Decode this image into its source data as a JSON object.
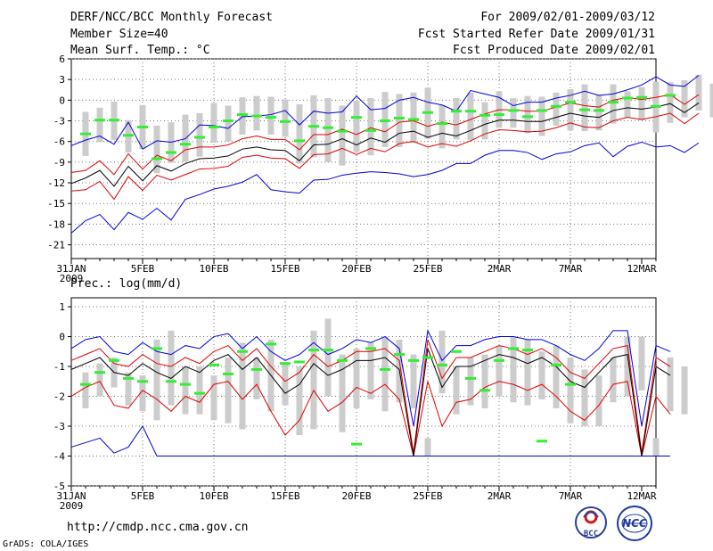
{
  "header": {
    "title": "DERF/NCC/BCC Monthly Forecast",
    "member_size": "Member Size=40",
    "variable": "Mean Surf. Temp.: °C",
    "period": "For 2009/02/01-2009/03/12",
    "refer_date": "Fcst Started Refer Date 2009/01/31",
    "produced_date": "Fcst Produced Date 2009/02/01"
  },
  "footer": {
    "url": "http://cmdp.ncc.cma.gov.cn",
    "credit": "GrADS: COLA/IGES",
    "logo_bcc": "BCC",
    "logo_ncc": "NCC"
  },
  "colors": {
    "mean": "#000000",
    "spread": "#e00000",
    "extreme": "#0000e0",
    "box": "#cccccc",
    "median": "#33ee33"
  },
  "chart_data": [
    {
      "type": "line",
      "title": "Mean Surf. Temp.: °C",
      "ylim": [
        -23,
        6
      ],
      "yticks": [
        "6",
        "3",
        "0",
        "-3",
        "-6",
        "-9",
        "-12",
        "-15",
        "-18",
        "-21"
      ],
      "xtick_labels": [
        "31JAN\n2009",
        "5FEB",
        "10FEB",
        "15FEB",
        "20FEB",
        "25FEB",
        "2MAR",
        "7MAR",
        "12MAR"
      ],
      "series": [
        {
          "name": "mean",
          "values": [
            -12.1,
            -11.3,
            -10.2,
            -12.5,
            -9.6,
            -11.7,
            -9.5,
            -10.3,
            -9.2,
            -8.5,
            -8.4,
            -8.1,
            -7.1,
            -6.8,
            -7.2,
            -7.3,
            -8.8,
            -6.5,
            -6.4,
            -5.6,
            -6.5,
            -5.5,
            -6.1,
            -4.8,
            -4.5,
            -5.4,
            -4.8,
            -5.2,
            -4.4,
            -3.5,
            -2.9,
            -2.9,
            -3.1,
            -3.1,
            -2.5,
            -1.9,
            -2.3,
            -2.5,
            -1.5,
            -1.1,
            -1.3,
            -1.0,
            -0.5,
            -1.8,
            -0.4
          ]
        },
        {
          "name": "upper1",
          "values": [
            -10.5,
            -10.2,
            -8.8,
            -10.8,
            -7.8,
            -10.0,
            -8.0,
            -8.8,
            -7.2,
            -6.8,
            -6.8,
            -6.5,
            -5.6,
            -5.2,
            -5.7,
            -5.7,
            -7.2,
            -5.0,
            -5.0,
            -4.2,
            -5.0,
            -4.0,
            -4.6,
            -3.2,
            -3.0,
            -3.8,
            -3.2,
            -3.6,
            -2.8,
            -2.0,
            -1.4,
            -1.4,
            -1.6,
            -1.6,
            -1.0,
            -0.4,
            -0.8,
            -1.0,
            0.0,
            0.4,
            0.1,
            0.4,
            0.8,
            -0.6,
            0.8
          ]
        },
        {
          "name": "lower1",
          "values": [
            -13.2,
            -13.0,
            -11.8,
            -14.4,
            -11.1,
            -13.1,
            -10.9,
            -11.6,
            -10.8,
            -10.0,
            -9.9,
            -9.6,
            -8.3,
            -8.0,
            -8.4,
            -8.5,
            -9.9,
            -7.9,
            -7.8,
            -7.0,
            -7.9,
            -7.0,
            -7.5,
            -6.3,
            -6.0,
            -6.8,
            -6.3,
            -6.7,
            -5.9,
            -4.9,
            -4.3,
            -4.4,
            -4.6,
            -4.5,
            -4.0,
            -3.3,
            -3.9,
            -4.0,
            -3.0,
            -2.5,
            -2.8,
            -2.4,
            -1.9,
            -3.4,
            -1.9
          ]
        },
        {
          "name": "max",
          "values": [
            -6.6,
            -5.8,
            -5.2,
            -6.4,
            -3.2,
            -7.1,
            -5.9,
            -6.1,
            -5.6,
            -3.6,
            -3.7,
            -4.1,
            -2.4,
            -2.3,
            -2.1,
            -1.5,
            -3.6,
            -1.6,
            -1.9,
            -1.7,
            0.6,
            -1.4,
            -1.2,
            0.0,
            0.4,
            -0.3,
            -0.7,
            -1.6,
            1.4,
            0.9,
            0.4,
            -0.8,
            -0.3,
            -0.3,
            0.3,
            0.7,
            1.3,
            0.7,
            0.9,
            1.5,
            2.2,
            3.4,
            2.2,
            2.0,
            3.6
          ]
        },
        {
          "name": "min",
          "values": [
            -19.3,
            -17.5,
            -16.6,
            -18.8,
            -16.3,
            -17.3,
            -15.7,
            -17.4,
            -14.4,
            -13.7,
            -12.9,
            -12.5,
            -11.9,
            -10.8,
            -13.0,
            -13.3,
            -13.5,
            -11.6,
            -11.5,
            -10.9,
            -10.6,
            -10.4,
            -10.5,
            -10.7,
            -11.1,
            -10.8,
            -10.2,
            -9.2,
            -9.2,
            -8.0,
            -7.3,
            -7.3,
            -7.6,
            -8.6,
            -7.8,
            -7.5,
            -6.6,
            -6.2,
            -8.2,
            -6.7,
            -6.1,
            -6.8,
            -6.6,
            -7.6,
            -6.2
          ]
        },
        {
          "name": "median",
          "values": [
            -4.9,
            -2.9,
            -2.9,
            -5.1,
            -3.9,
            -8.5,
            -7.6,
            -6.4,
            -5.4,
            -3.9,
            -3.0,
            -2.1,
            -2.3,
            -2.5,
            -3.1,
            -5.9,
            -3.8,
            -4.0,
            -4.5,
            -2.5,
            -4.4,
            -3.0,
            -2.6,
            -2.8,
            -1.8,
            -3.4,
            -1.6,
            -1.6,
            -2.2,
            -2.1,
            -1.5,
            -2.4,
            -1.5,
            -0.9,
            -0.3,
            -1.4,
            -1.5,
            -0.3,
            0.3,
            0.4,
            -0.9,
            0.7
          ]
        },
        {
          "name": "box_top",
          "values": [
            -1.7,
            -1.1,
            -0.2,
            -2.9,
            -0.7,
            -3.7,
            -3.2,
            -2.1,
            -1.9,
            -0.4,
            -0.8,
            0.4,
            0.6,
            0.5,
            0.1,
            -0.6,
            0.7,
            0.3,
            -0.8,
            -0.1,
            0.3,
            1.2,
            0.9,
            1.1,
            1.8,
            -0.7,
            0.3,
            1.1,
            -0.3,
            1.3,
            0.3,
            0.6,
            0.5,
            1.1,
            1.6,
            2.3,
            0.8,
            2.3,
            1.3,
            1.9,
            2.7,
            2.6,
            2.9,
            3.7,
            2.4
          ]
        },
        {
          "name": "box_bottom",
          "values": [
            -8.1,
            -6.1,
            -5.8,
            -7.6,
            -7.1,
            -10.6,
            -9.1,
            -8.9,
            -8.2,
            -6.2,
            -6.0,
            -5.0,
            -4.4,
            -5.0,
            -5.3,
            -9.2,
            -8.3,
            -9.0,
            -9.5,
            -7.5,
            -8.0,
            -6.8,
            -6.8,
            -6.2,
            -5.6,
            -7.0,
            -5.7,
            -5.8,
            -5.7,
            -4.0,
            -4.0,
            -4.8,
            -5.2,
            -3.7,
            -4.4,
            -4.5,
            -4.4,
            -3.4,
            -2.5,
            -2.9,
            -4.7,
            -3.3,
            -2.5,
            -1.5,
            -2.5
          ]
        }
      ]
    },
    {
      "type": "line",
      "title": "Prec.: log(mm/d)",
      "ylim": [
        -5,
        1.3
      ],
      "yticks": [
        "1",
        "0",
        "-1",
        "-2",
        "-3",
        "-4",
        "-5"
      ],
      "xtick_labels": [
        "31JAN\n2009",
        "5FEB",
        "10FEB",
        "15FEB",
        "20FEB",
        "25FEB",
        "2MAR",
        "7MAR",
        "12MAR"
      ],
      "series": [
        {
          "name": "mean",
          "values": [
            -1.1,
            -0.9,
            -0.7,
            -1.2,
            -1.3,
            -0.9,
            -1.2,
            -1.4,
            -1.0,
            -1.2,
            -0.8,
            -0.6,
            -1.1,
            -0.7,
            -1.3,
            -1.9,
            -1.6,
            -0.9,
            -1.3,
            -1.1,
            -0.8,
            -0.8,
            -0.7,
            -1.1,
            -4.0,
            -0.4,
            -1.7,
            -1.0,
            -1.0,
            -0.8,
            -0.6,
            -0.7,
            -0.9,
            -0.7,
            -1.0,
            -1.5,
            -1.7,
            -1.2,
            -0.7,
            -0.6,
            -4.0,
            -1.0,
            -1.3
          ]
        },
        {
          "name": "upper1",
          "values": [
            -0.8,
            -0.6,
            -0.4,
            -0.9,
            -1.0,
            -0.6,
            -0.9,
            -1.0,
            -0.7,
            -0.9,
            -0.5,
            -0.3,
            -0.8,
            -0.4,
            -1.0,
            -1.5,
            -1.2,
            -0.6,
            -1.0,
            -0.8,
            -0.5,
            -0.5,
            -0.4,
            -0.8,
            -3.9,
            -0.1,
            -1.4,
            -0.7,
            -0.7,
            -0.5,
            -0.3,
            -0.4,
            -0.6,
            -0.4,
            -0.7,
            -1.2,
            -1.4,
            -0.9,
            -0.4,
            -0.3,
            -3.9,
            -0.7,
            -1.0
          ]
        },
        {
          "name": "lower1",
          "values": [
            -2.0,
            -1.7,
            -1.5,
            -2.3,
            -2.4,
            -1.8,
            -2.1,
            -2.5,
            -2.0,
            -2.2,
            -1.6,
            -1.5,
            -2.1,
            -1.6,
            -2.5,
            -3.3,
            -2.8,
            -1.8,
            -2.5,
            -2.2,
            -1.7,
            -1.9,
            -1.6,
            -2.1,
            -4.0,
            -1.5,
            -3.0,
            -2.2,
            -2.1,
            -1.7,
            -1.5,
            -1.6,
            -1.8,
            -1.6,
            -2.0,
            -2.5,
            -2.8,
            -2.3,
            -1.6,
            -1.5,
            -4.0,
            -2.0,
            -2.6
          ]
        },
        {
          "name": "min",
          "values": [
            -3.7,
            -3.55,
            -3.4,
            -3.9,
            -3.7,
            -3.0,
            -4.0,
            -4.0,
            -4.0,
            -4.0,
            -4.0,
            -4.0,
            -4.0,
            -4.0,
            -4.0,
            -4.0,
            -4.0,
            -4.0,
            -4.0,
            -4.0,
            -4.0,
            -4.0,
            -4.0,
            -4.0,
            -4.0,
            -4.0,
            -4.0,
            -4.0,
            -4.0,
            -4.0,
            -4.0,
            -4.0,
            -4.0,
            -4.0,
            -4.0,
            -4.0,
            -4.0,
            -4.0,
            -4.0,
            -4.0,
            -4.0,
            -4.0,
            -4.0
          ]
        },
        {
          "name": "max",
          "values": [
            -0.4,
            -0.1,
            0.0,
            -0.5,
            -0.6,
            -0.2,
            -0.5,
            -0.6,
            -0.3,
            -0.4,
            0.0,
            0.1,
            -0.4,
            0.0,
            -0.5,
            -0.8,
            -0.6,
            -0.2,
            -0.6,
            -0.4,
            -0.1,
            -0.2,
            0.0,
            -0.4,
            -3.0,
            0.2,
            -0.8,
            -0.3,
            -0.3,
            -0.1,
            0.0,
            0.0,
            -0.1,
            -0.1,
            -0.3,
            -0.6,
            -0.8,
            -0.4,
            0.2,
            0.2,
            -3.0,
            -0.3,
            -0.5
          ]
        },
        {
          "name": "box_bottom",
          "values": [
            -2.4,
            -2.0,
            -1.7,
            -2.3,
            -2.5,
            -2.8,
            -2.3,
            -2.6,
            -2.6,
            -2.8,
            -2.9,
            -3.1,
            -2.1,
            -2.5,
            -2.3,
            -3.3,
            -3.1,
            -2.0,
            -3.2,
            -2.4,
            -2.1,
            -2.5,
            -2.2,
            -2.4,
            -4.0,
            -1.9,
            -2.6,
            -2.3,
            -2.4,
            -2.0,
            -2.2,
            -2.3,
            -2.1,
            -2.4,
            -2.9,
            -3.0,
            -3.0,
            -2.2,
            -2.0,
            -1.8,
            -4.0,
            -2.5,
            -2.6
          ]
        },
        {
          "name": "box_top",
          "values": [
            -1.2,
            -0.9,
            -0.7,
            -1.2,
            -1.3,
            -0.1,
            0.2,
            -1.0,
            -1.0,
            -1.3,
            -0.7,
            -0.2,
            -0.7,
            -0.1,
            -0.9,
            -1.0,
            0.2,
            0.6,
            -0.6,
            -0.4,
            -0.2,
            0.0,
            -0.1,
            -0.6,
            -3.4,
            0.2,
            -1.0,
            -0.7,
            -0.6,
            -0.3,
            0.0,
            -0.1,
            -0.5,
            -0.3,
            -0.7,
            -1.1,
            -1.3,
            -0.7,
            0.0,
            0.0,
            -3.4,
            -0.7,
            -1.0
          ]
        },
        {
          "name": "median",
          "values": [
            -1.6,
            -1.2,
            -0.8,
            -1.4,
            -1.5,
            -0.4,
            -1.5,
            -1.6,
            -1.9,
            -0.95,
            -1.25,
            -0.5,
            -1.1,
            -0.25,
            -0.9,
            -0.85,
            -0.45,
            -0.45,
            -0.8,
            -3.6,
            -0.4,
            -1.1,
            -0.6,
            -0.8,
            -0.7,
            -0.95,
            -0.5,
            -1.4,
            -1.8,
            -0.8,
            -0.4,
            -0.45,
            -3.5,
            -0.95,
            -1.6
          ]
        }
      ]
    }
  ]
}
